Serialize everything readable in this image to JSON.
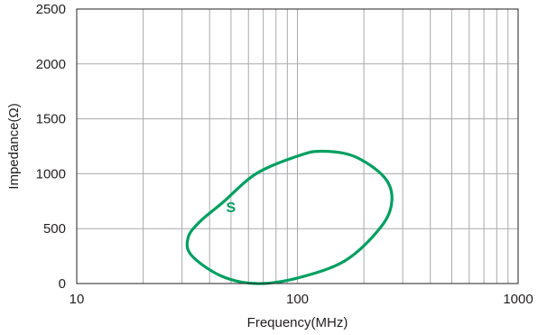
{
  "chart_data": {
    "type": "line",
    "xlabel": "Frequency(MHz)",
    "ylabel": "Impedance(Ω)",
    "x_scale": "log",
    "xlim": [
      10,
      1000
    ],
    "ylim": [
      0,
      2500
    ],
    "x_ticks": [
      10,
      100,
      1000
    ],
    "x_tick_labels": [
      "10",
      "100",
      "1000"
    ],
    "y_ticks": [
      0,
      500,
      1000,
      1500,
      2000,
      2500
    ],
    "y_tick_labels": [
      "0",
      "500",
      "1000",
      "1500",
      "2000",
      "2500"
    ],
    "grid": true,
    "legend": "none",
    "series": [
      {
        "name": "S",
        "color": "#00a060",
        "shape": "closed loop",
        "x": [
          65,
          100,
          128,
          180,
          247,
          268,
          240,
          165,
          100,
          65,
          45,
          33,
          32,
          36,
          46,
          65
        ],
        "y": [
          1000,
          1160,
          1205,
          1160,
          970,
          760,
          520,
          210,
          50,
          0,
          70,
          260,
          420,
          560,
          740,
          1000
        ]
      }
    ]
  }
}
